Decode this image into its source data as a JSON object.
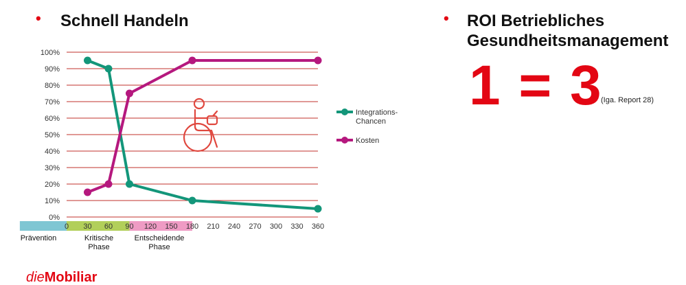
{
  "left_heading": "Schnell Handeln",
  "right_heading": [
    "ROI Betriebliches",
    "Gesundheitsmanagement"
  ],
  "roi": {
    "equation": "1 = 3",
    "source": "(Iga. Report 28)"
  },
  "logo": {
    "die": "die",
    "brand": "Mobiliar"
  },
  "colors": {
    "accent": "#e30613",
    "integration": "#13967a",
    "kosten": "#b5187e",
    "gridline": "#c0302b",
    "phase_praevention": "#7fc6d3",
    "phase_kritisch": "#b2cf5a",
    "phase_entscheidend": "#ef9bc4"
  },
  "icon": "wheelchair-user-icon",
  "chart_data": {
    "type": "line",
    "xlim": [
      0,
      360
    ],
    "ylim": [
      0,
      100
    ],
    "x_ticks": [
      "0",
      "30",
      "60",
      "90",
      "120",
      "150",
      "180",
      "210",
      "240",
      "270",
      "300",
      "330",
      "360"
    ],
    "y_ticks": [
      "0%",
      "10%",
      "20%",
      "30%",
      "40%",
      "50%",
      "60%",
      "70%",
      "80%",
      "90%",
      "100%"
    ],
    "grid": true,
    "legend_position": "right",
    "series": [
      {
        "name": "Integrations-Chancen",
        "name_lines": [
          "Integrations-",
          "Chancen"
        ],
        "color": "#13967a",
        "points": [
          [
            30,
            95
          ],
          [
            60,
            90
          ],
          [
            90,
            20
          ],
          [
            180,
            10
          ],
          [
            360,
            5
          ]
        ]
      },
      {
        "name": "Kosten",
        "name_lines": [
          "Kosten"
        ],
        "color": "#b5187e",
        "points": [
          [
            30,
            15
          ],
          [
            60,
            20
          ],
          [
            90,
            75
          ],
          [
            180,
            95
          ],
          [
            360,
            95
          ]
        ]
      }
    ],
    "phases": [
      {
        "name": "Prävention",
        "lines": [
          "Prävention"
        ],
        "from": -67,
        "to": 0,
        "color": "#7fc6d3"
      },
      {
        "name": "Kritische Phase",
        "lines": [
          "Kritische",
          "Phase"
        ],
        "from": 0,
        "to": 90,
        "color": "#b2cf5a"
      },
      {
        "name": "Entscheidende Phase",
        "lines": [
          "Entscheidende",
          "Phase"
        ],
        "from": 90,
        "to": 180,
        "color": "#ef9bc4"
      }
    ]
  }
}
